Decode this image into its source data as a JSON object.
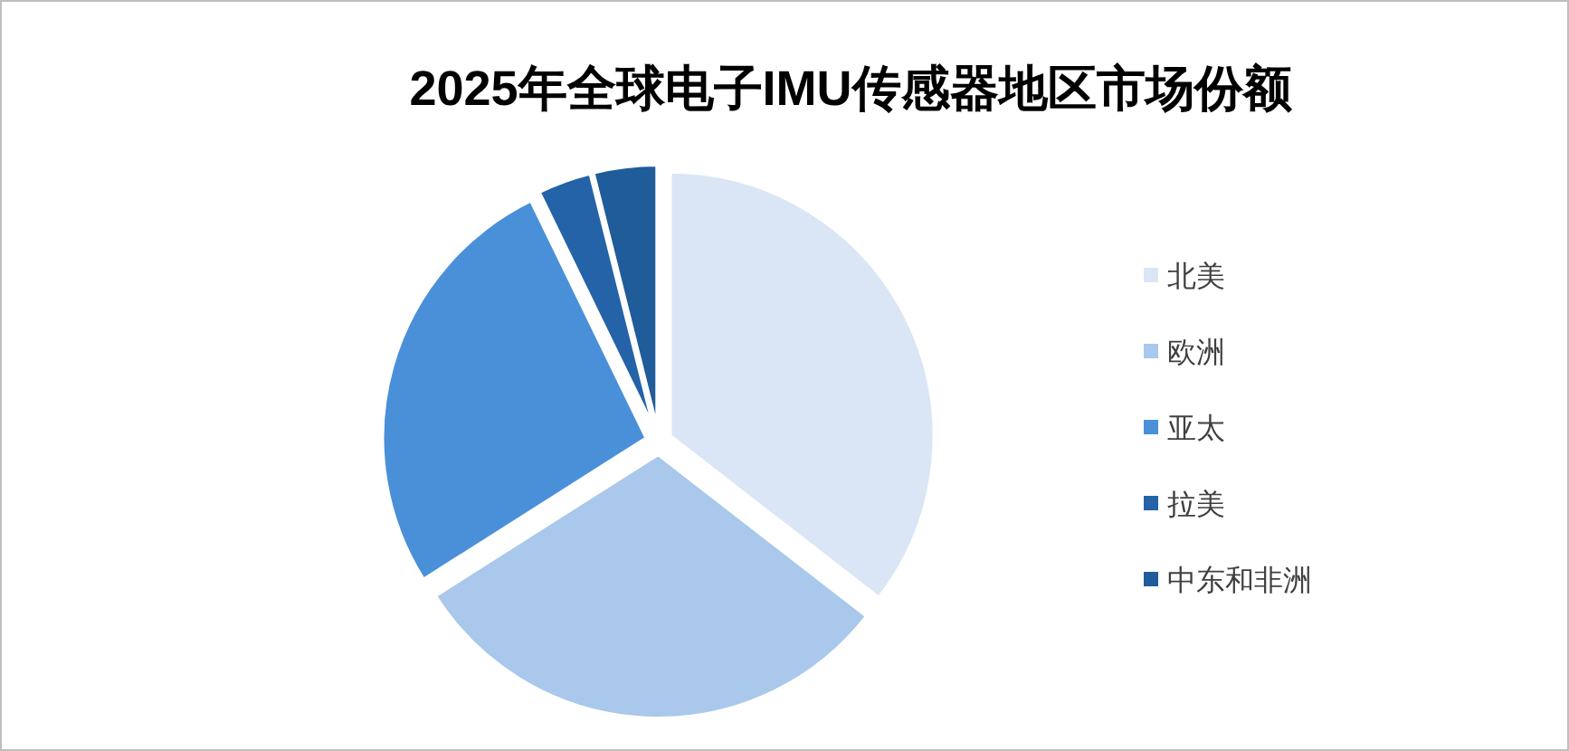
{
  "chart_data": {
    "type": "pie",
    "title": "2025年全球电子IMU传感器地区市场份额",
    "categories": [
      "北美",
      "欧洲",
      "亚太",
      "拉美",
      "中东和非洲"
    ],
    "values": [
      35.5,
      30.5,
      26.8,
      3.3,
      3.9
    ],
    "colors": [
      "#dae6f5",
      "#a9c8eb",
      "#4a90d9",
      "#2463a8",
      "#1f5c99"
    ],
    "legend": "right"
  }
}
